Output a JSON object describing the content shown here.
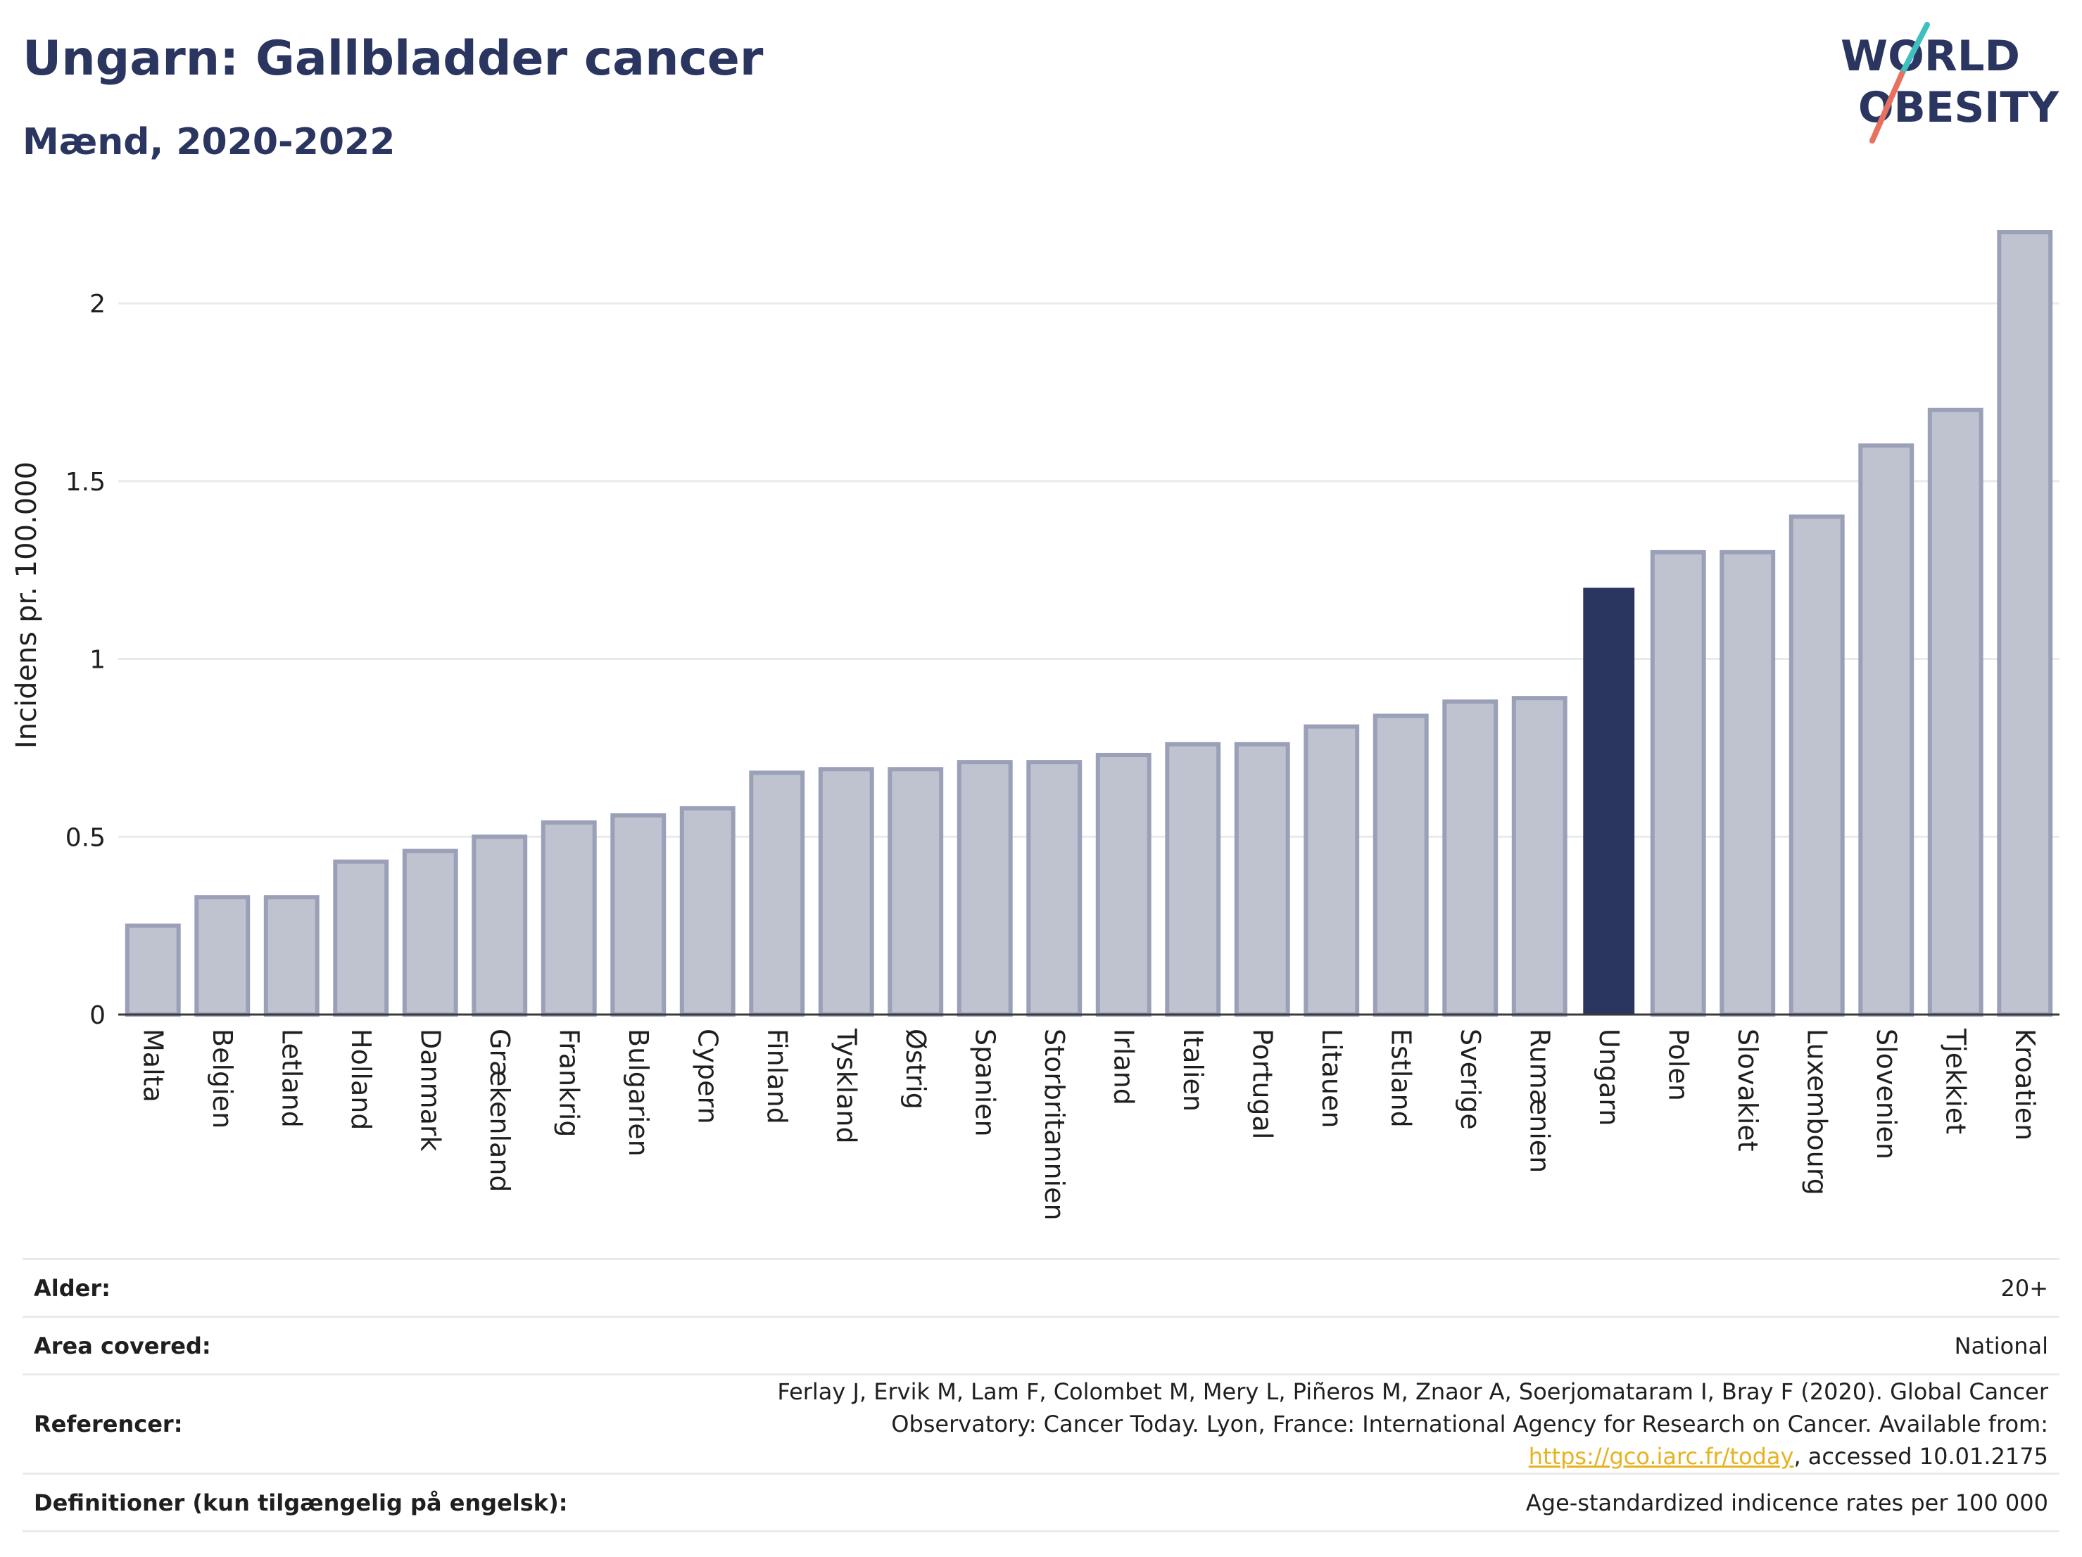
{
  "header": {
    "title": "Ungarn: Gallbladder cancer",
    "subtitle": "Mænd, 2020-2022"
  },
  "logo": {
    "line1": "WORLD",
    "line2": "OBESITY"
  },
  "colors": {
    "bar": "#bfc2cf",
    "bar_border": "#9aa0b8",
    "highlight": "#2a3560",
    "grid": "#e8ebee",
    "axis": "#3a3a3a"
  },
  "chart_data": {
    "type": "bar",
    "title": "Ungarn: Gallbladder cancer",
    "subtitle": "Mænd, 2020-2022",
    "ylabel": "Incidens pr. 100.000",
    "xlabel": "",
    "ylim": [
      0,
      2.2
    ],
    "yticks": [
      0,
      0.5,
      1,
      1.5,
      2
    ],
    "ytick_labels": [
      "0",
      "0.5",
      "1",
      "1.5",
      "2"
    ],
    "grid": true,
    "highlight": "Ungarn",
    "categories": [
      "Malta",
      "Belgien",
      "Letland",
      "Holland",
      "Danmark",
      "Grækenland",
      "Frankrig",
      "Bulgarien",
      "Cypern",
      "Finland",
      "Tyskland",
      "Østrig",
      "Spanien",
      "Storbritannien",
      "Irland",
      "Italien",
      "Portugal",
      "Litauen",
      "Estland",
      "Sverige",
      "Rumænien",
      "Ungarn",
      "Polen",
      "Slovakiet",
      "Luxembourg",
      "Slovenien",
      "Tjekkiet",
      "Kroatien"
    ],
    "values": [
      0.25,
      0.33,
      0.33,
      0.43,
      0.46,
      0.5,
      0.54,
      0.56,
      0.58,
      0.68,
      0.69,
      0.69,
      0.71,
      0.71,
      0.73,
      0.76,
      0.76,
      0.81,
      0.84,
      0.88,
      0.89,
      1.2,
      1.3,
      1.3,
      1.4,
      1.6,
      1.7,
      2.2
    ]
  },
  "meta": [
    {
      "key": "Alder:",
      "value": "20+"
    },
    {
      "key": "Area covered:",
      "value": "National"
    },
    {
      "key": "Referencer:",
      "value_pre": "Ferlay J, Ervik M, Lam F, Colombet M, Mery L, Piñeros M, Znaor A, Soerjomataram I, Bray F (2020). Global Cancer Observatory: Cancer Today. Lyon, France: International Agency for Research on Cancer. Available from: ",
      "link": "https://gco.iarc.fr/today",
      "value_post": ", accessed 10.01.2175"
    },
    {
      "key": "Definitioner (kun tilgængelig på engelsk):",
      "value": "Age-standardized indicence rates per 100 000"
    }
  ]
}
